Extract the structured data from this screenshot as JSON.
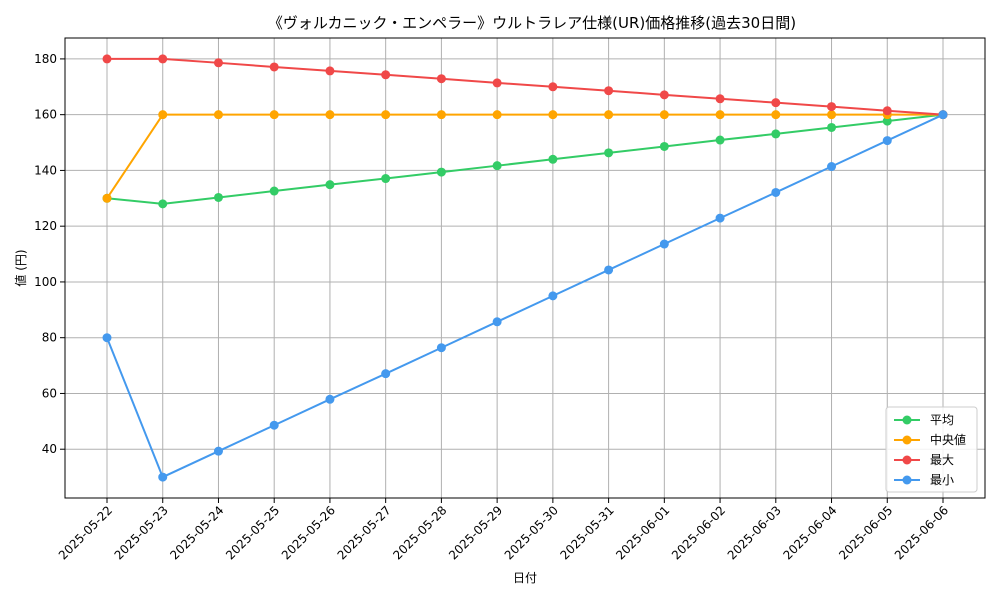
{
  "chart_data": {
    "type": "line",
    "title": "《ヴォルカニック・エンペラー》ウルトラレア仕様(UR)価格推移(過去30日間)",
    "xlabel": "日付",
    "ylabel": "値 (円)",
    "categories": [
      "2025-05-22",
      "2025-05-23",
      "2025-05-24",
      "2025-05-25",
      "2025-05-26",
      "2025-05-27",
      "2025-05-28",
      "2025-05-29",
      "2025-05-30",
      "2025-05-31",
      "2025-06-01",
      "2025-06-02",
      "2025-06-03",
      "2025-06-04",
      "2025-06-05",
      "2025-06-06"
    ],
    "ylim": [
      22.5,
      187.5
    ],
    "yticks": [
      40,
      60,
      80,
      100,
      120,
      140,
      160,
      180
    ],
    "grid": true,
    "legend_position": "bottom-right",
    "series": [
      {
        "name": "平均",
        "color": "#33cc66",
        "values": [
          130,
          128,
          130.3,
          132.6,
          134.9,
          137.1,
          139.4,
          141.7,
          144.0,
          146.3,
          148.6,
          150.9,
          153.1,
          155.4,
          157.7,
          160
        ]
      },
      {
        "name": "中央値",
        "color": "#ffa500",
        "values": [
          130,
          160,
          160,
          160,
          160,
          160,
          160,
          160,
          160,
          160,
          160,
          160,
          160,
          160,
          160,
          160
        ]
      },
      {
        "name": "最大",
        "color": "#f04848",
        "values": [
          180,
          180,
          178.6,
          177.1,
          175.7,
          174.3,
          172.9,
          171.4,
          170.0,
          168.6,
          167.1,
          165.7,
          164.3,
          162.9,
          161.4,
          160
        ]
      },
      {
        "name": "最小",
        "color": "#4499ee",
        "values": [
          80,
          30,
          39.3,
          48.6,
          57.9,
          67.1,
          76.4,
          85.7,
          95.0,
          104.3,
          113.6,
          122.9,
          132.1,
          141.4,
          150.7,
          160
        ]
      }
    ]
  }
}
